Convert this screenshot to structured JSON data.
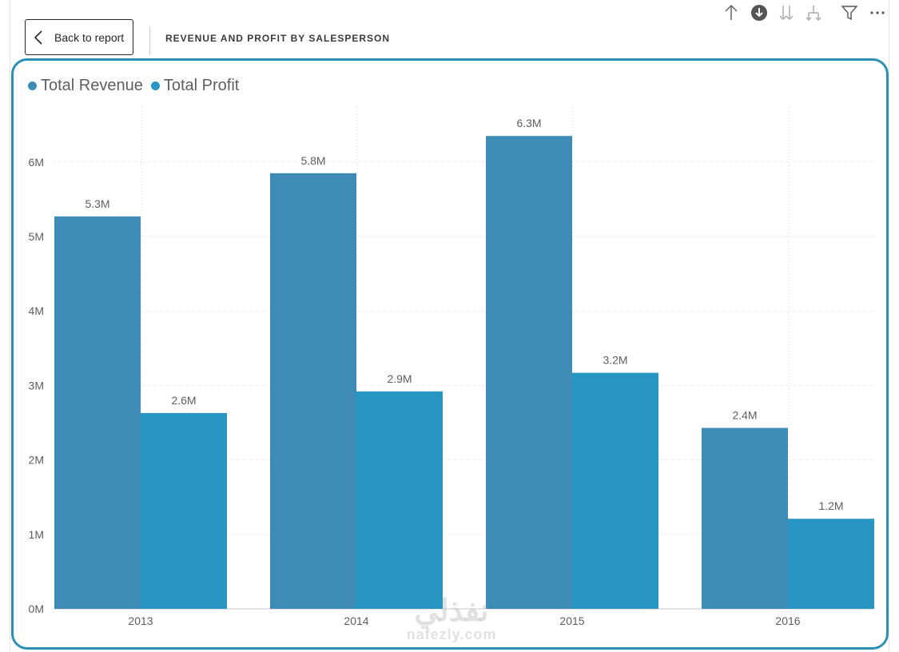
{
  "header": {
    "back_label": "Back to report",
    "title": "REVENUE AND PROFIT BY SALESPERSON"
  },
  "toolbar": {
    "icons": [
      "arrow-up-icon",
      "drill-down-icon",
      "expand-all-icon",
      "drill-hierarchy-icon",
      "filter-icon",
      "more-options-icon"
    ]
  },
  "colors": {
    "revenue": "#3e8cb5",
    "profit": "#2896c2",
    "frame": "#2b8fb6"
  },
  "legend": {
    "items": [
      {
        "label": "Total Revenue",
        "color": "#3e8cb5"
      },
      {
        "label": "Total Profit",
        "color": "#2896c2"
      }
    ]
  },
  "chart_data": {
    "type": "bar",
    "title": "",
    "xlabel": "",
    "ylabel": "",
    "categories": [
      "2013",
      "2014",
      "2015",
      "2016"
    ],
    "series": [
      {
        "name": "Total Revenue",
        "values": [
          5.27,
          5.85,
          6.35,
          2.43
        ],
        "labels": [
          "5.3M",
          "5.8M",
          "6.3M",
          "2.4M"
        ],
        "color": "#3e8cb5"
      },
      {
        "name": "Total Profit",
        "values": [
          2.63,
          2.92,
          3.17,
          1.21
        ],
        "labels": [
          "2.6M",
          "2.9M",
          "3.2M",
          "1.2M"
        ],
        "color": "#2896c2"
      }
    ],
    "y_ticks": [
      "0M",
      "1M",
      "2M",
      "3M",
      "4M",
      "5M",
      "6M"
    ],
    "ylim": [
      0,
      6.5
    ],
    "unit": "M",
    "grid": true,
    "legend_position": "top-left"
  },
  "watermark": {
    "arabic": "نفذلي",
    "latin": "nafezly.com"
  }
}
